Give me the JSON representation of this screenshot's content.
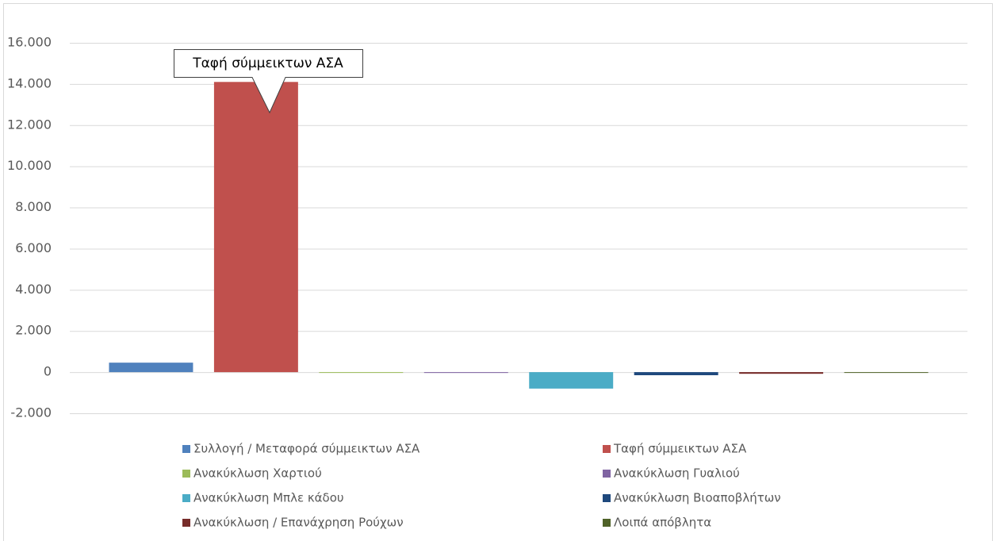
{
  "chart_data": {
    "type": "bar",
    "categories": [
      null
    ],
    "series": [
      {
        "name": "Συλλογή / Μεταφορά σύμμεικτων ΑΣΑ",
        "color": "#4f81bd",
        "values": [
          460
        ]
      },
      {
        "name": "Ταφή σύμμεικτων ΑΣΑ",
        "color": "#c0504d",
        "values": [
          14100
        ]
      },
      {
        "name": "Ανακύκλωση Χαρτιού",
        "color": "#9bbb59",
        "values": [
          0
        ]
      },
      {
        "name": "Ανακύκλωση Γυαλιού",
        "color": "#8064a2",
        "values": [
          -40
        ]
      },
      {
        "name": "Ανακύκλωση Μπλε κάδου",
        "color": "#4bacc6",
        "values": [
          -800
        ]
      },
      {
        "name": "Ανακύκλωση Βιοαποβλήτων",
        "color": "#1f497d",
        "values": [
          -150
        ]
      },
      {
        "name": "Ανακύκλωση /  Επανάχρηση Ρούχων",
        "color": "#772c2a",
        "values": [
          -80
        ]
      },
      {
        "name": "Λοιπά απόβλητα",
        "color": "#4f6228",
        "values": [
          0
        ]
      }
    ],
    "annotations": [
      {
        "text": "Ταφή σύμμεικτων ΑΣΑ"
      }
    ],
    "ylim": [
      -2000,
      16000
    ],
    "yticks": [
      {
        "value": -2000,
        "label": "-2.000"
      },
      0,
      {
        "value": 2000,
        "label": "2.000"
      },
      {
        "value": 4000,
        "label": "4.000"
      },
      {
        "value": 6000,
        "label": "6.000"
      },
      {
        "value": 8000,
        "label": "8.000"
      },
      {
        "value": 10000,
        "label": "10.000"
      },
      {
        "value": 12000,
        "label": "12.000"
      },
      {
        "value": 14000,
        "label": "14.000"
      },
      {
        "value": 16000,
        "label": "16.000"
      }
    ],
    "grid": true,
    "legend": "bottom"
  }
}
